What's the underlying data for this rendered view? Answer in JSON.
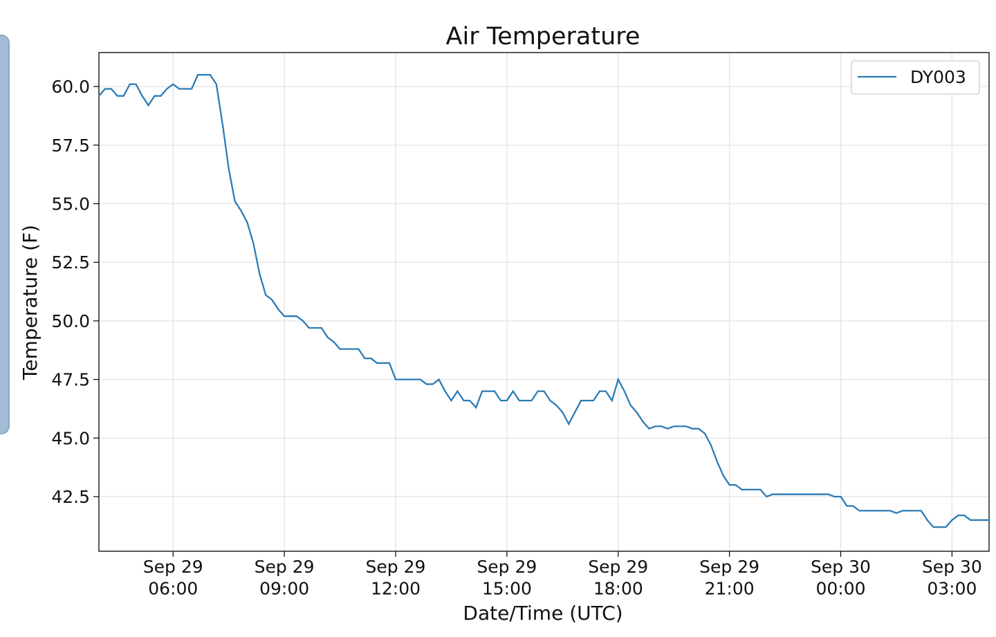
{
  "chart_data": {
    "type": "line",
    "title": "Air Temperature",
    "xlabel": "Date/Time (UTC)",
    "ylabel": "Temperature (F)",
    "x": [
      "Sep 29 04:00",
      "Sep 29 04:10",
      "Sep 29 04:20",
      "Sep 29 04:30",
      "Sep 29 04:40",
      "Sep 29 04:50",
      "Sep 29 05:00",
      "Sep 29 05:10",
      "Sep 29 05:20",
      "Sep 29 05:30",
      "Sep 29 05:40",
      "Sep 29 05:50",
      "Sep 29 06:00",
      "Sep 29 06:10",
      "Sep 29 06:20",
      "Sep 29 06:30",
      "Sep 29 06:40",
      "Sep 29 06:50",
      "Sep 29 07:00",
      "Sep 29 07:10",
      "Sep 29 07:20",
      "Sep 29 07:30",
      "Sep 29 07:40",
      "Sep 29 07:50",
      "Sep 29 08:00",
      "Sep 29 08:10",
      "Sep 29 08:20",
      "Sep 29 08:30",
      "Sep 29 08:40",
      "Sep 29 08:50",
      "Sep 29 09:00",
      "Sep 29 09:10",
      "Sep 29 09:20",
      "Sep 29 09:30",
      "Sep 29 09:40",
      "Sep 29 09:50",
      "Sep 29 10:00",
      "Sep 29 10:10",
      "Sep 29 10:20",
      "Sep 29 10:30",
      "Sep 29 10:40",
      "Sep 29 10:50",
      "Sep 29 11:00",
      "Sep 29 11:10",
      "Sep 29 11:20",
      "Sep 29 11:30",
      "Sep 29 11:40",
      "Sep 29 11:50",
      "Sep 29 12:00",
      "Sep 29 12:10",
      "Sep 29 12:20",
      "Sep 29 12:30",
      "Sep 29 12:40",
      "Sep 29 12:50",
      "Sep 29 13:00",
      "Sep 29 13:10",
      "Sep 29 13:20",
      "Sep 29 13:30",
      "Sep 29 13:40",
      "Sep 29 13:50",
      "Sep 29 14:00",
      "Sep 29 14:10",
      "Sep 29 14:20",
      "Sep 29 14:30",
      "Sep 29 14:40",
      "Sep 29 14:50",
      "Sep 29 15:00",
      "Sep 29 15:10",
      "Sep 29 15:20",
      "Sep 29 15:30",
      "Sep 29 15:40",
      "Sep 29 15:50",
      "Sep 29 16:00",
      "Sep 29 16:10",
      "Sep 29 16:20",
      "Sep 29 16:30",
      "Sep 29 16:40",
      "Sep 29 16:50",
      "Sep 29 17:00",
      "Sep 29 17:10",
      "Sep 29 17:20",
      "Sep 29 17:30",
      "Sep 29 17:40",
      "Sep 29 17:50",
      "Sep 29 18:00",
      "Sep 29 18:10",
      "Sep 29 18:20",
      "Sep 29 18:30",
      "Sep 29 18:40",
      "Sep 29 18:50",
      "Sep 29 19:00",
      "Sep 29 19:10",
      "Sep 29 19:20",
      "Sep 29 19:30",
      "Sep 29 19:40",
      "Sep 29 19:50",
      "Sep 29 20:00",
      "Sep 29 20:10",
      "Sep 29 20:20",
      "Sep 29 20:30",
      "Sep 29 20:40",
      "Sep 29 20:50",
      "Sep 29 21:00",
      "Sep 29 21:10",
      "Sep 29 21:20",
      "Sep 29 21:30",
      "Sep 29 21:40",
      "Sep 29 21:50",
      "Sep 29 22:00",
      "Sep 29 22:10",
      "Sep 29 22:20",
      "Sep 29 22:30",
      "Sep 29 22:40",
      "Sep 29 22:50",
      "Sep 29 23:00",
      "Sep 29 23:10",
      "Sep 29 23:20",
      "Sep 29 23:30",
      "Sep 29 23:40",
      "Sep 29 23:50",
      "Sep 30 00:00",
      "Sep 30 00:10",
      "Sep 30 00:20",
      "Sep 30 00:30",
      "Sep 30 00:40",
      "Sep 30 00:50",
      "Sep 30 01:00",
      "Sep 30 01:10",
      "Sep 30 01:20",
      "Sep 30 01:30",
      "Sep 30 01:40",
      "Sep 30 01:50",
      "Sep 30 02:00",
      "Sep 30 02:10",
      "Sep 30 02:20",
      "Sep 30 02:30",
      "Sep 30 02:40",
      "Sep 30 02:50",
      "Sep 30 03:00",
      "Sep 30 03:10",
      "Sep 30 03:20",
      "Sep 30 03:30",
      "Sep 30 03:40",
      "Sep 30 03:50",
      "Sep 30 04:00"
    ],
    "series": [
      {
        "name": "DY003",
        "color": "#2b7bb5",
        "values": [
          59.6,
          59.9,
          59.9,
          59.6,
          59.6,
          60.1,
          60.1,
          59.6,
          59.2,
          59.6,
          59.6,
          59.9,
          60.1,
          59.9,
          59.9,
          59.9,
          60.5,
          60.5,
          60.5,
          60.1,
          58.4,
          56.5,
          55.1,
          54.7,
          54.2,
          53.3,
          52.0,
          51.1,
          50.9,
          50.5,
          50.2,
          50.2,
          50.2,
          50.0,
          49.7,
          49.7,
          49.7,
          49.3,
          49.1,
          48.8,
          48.8,
          48.8,
          48.8,
          48.4,
          48.4,
          48.2,
          48.2,
          48.2,
          47.5,
          47.5,
          47.5,
          47.5,
          47.5,
          47.3,
          47.3,
          47.5,
          47.0,
          46.6,
          47.0,
          46.6,
          46.6,
          46.3,
          47.0,
          47.0,
          47.0,
          46.6,
          46.6,
          47.0,
          46.6,
          46.6,
          46.6,
          47.0,
          47.0,
          46.6,
          46.4,
          46.1,
          45.6,
          46.1,
          46.6,
          46.6,
          46.6,
          47.0,
          47.0,
          46.6,
          47.5,
          47.0,
          46.4,
          46.1,
          45.7,
          45.4,
          45.5,
          45.5,
          45.4,
          45.5,
          45.5,
          45.5,
          45.4,
          45.4,
          45.2,
          44.7,
          44.0,
          43.4,
          43.0,
          43.0,
          42.8,
          42.8,
          42.8,
          42.8,
          42.5,
          42.6,
          42.6,
          42.6,
          42.6,
          42.6,
          42.6,
          42.6,
          42.6,
          42.6,
          42.6,
          42.5,
          42.5,
          42.1,
          42.1,
          41.9,
          41.9,
          41.9,
          41.9,
          41.9,
          41.9,
          41.8,
          41.9,
          41.9,
          41.9,
          41.9,
          41.5,
          41.2,
          41.2,
          41.2,
          41.5,
          41.7,
          41.7,
          41.5,
          41.5,
          41.5,
          41.5
        ]
      }
    ],
    "xlim": [
      "Sep 29 04:00",
      "Sep 30 04:00"
    ],
    "xticks": [
      {
        "value": "Sep 29 06:00",
        "label": "Sep 29\n06:00"
      },
      {
        "value": "Sep 29 09:00",
        "label": "Sep 29\n09:00"
      },
      {
        "value": "Sep 29 12:00",
        "label": "Sep 29\n12:00"
      },
      {
        "value": "Sep 29 15:00",
        "label": "Sep 29\n15:00"
      },
      {
        "value": "Sep 29 18:00",
        "label": "Sep 29\n18:00"
      },
      {
        "value": "Sep 29 21:00",
        "label": "Sep 29\n21:00"
      },
      {
        "value": "Sep 30 00:00",
        "label": "Sep 30\n00:00"
      },
      {
        "value": "Sep 30 03:00",
        "label": "Sep 30\n03:00"
      }
    ],
    "ylim": [
      40.17,
      61.45
    ],
    "yticks": [
      {
        "value": 42.5,
        "label": "42.5"
      },
      {
        "value": 45,
        "label": "45.0"
      },
      47.5,
      {
        "value": 50,
        "label": "50.0"
      },
      52.5,
      {
        "value": 55,
        "label": "55.0"
      },
      57.5,
      {
        "value": 60,
        "label": "60.0"
      }
    ],
    "grid": true,
    "legend": "upper right"
  }
}
